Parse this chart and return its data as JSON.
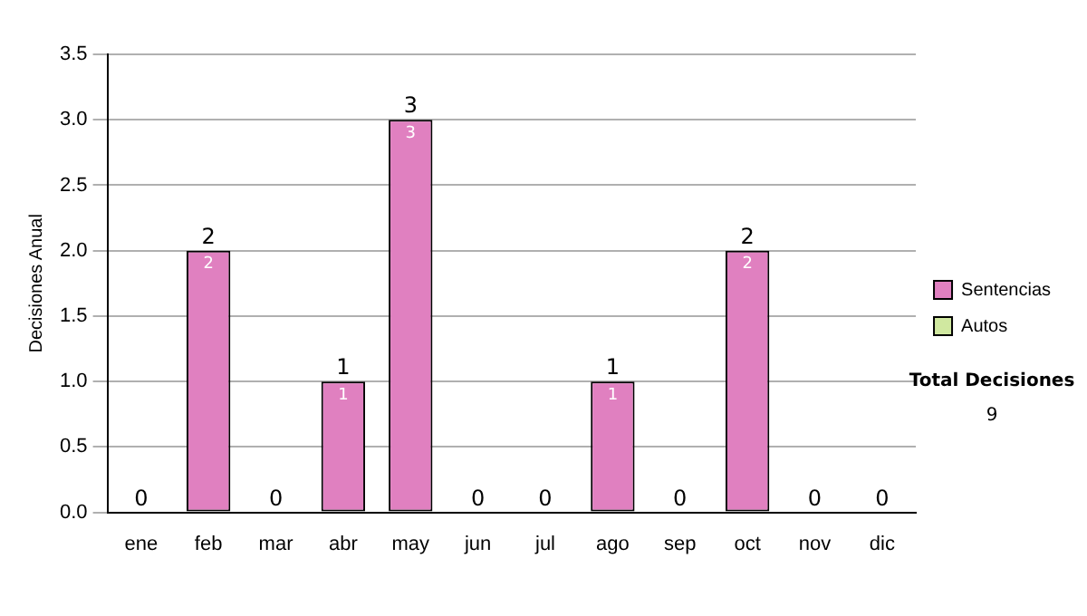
{
  "chart_data": {
    "type": "bar",
    "stacked": true,
    "ylabel": "Decisiones Anual",
    "categories": [
      "ene",
      "feb",
      "mar",
      "abr",
      "may",
      "jun",
      "jul",
      "ago",
      "sep",
      "oct",
      "nov",
      "dic"
    ],
    "series": [
      {
        "name": "Sentencias",
        "color": "#e080c0",
        "values": [
          0,
          2,
          0,
          1,
          3,
          0,
          0,
          1,
          0,
          2,
          0,
          0
        ],
        "value_labels": [
          null,
          "2",
          null,
          "1",
          "3",
          null,
          null,
          "1",
          null,
          "2",
          null,
          null
        ]
      },
      {
        "name": "Autos",
        "color": "#d0e8a0",
        "values": [
          0,
          0,
          0,
          0,
          0,
          0,
          0,
          0,
          0,
          0,
          0,
          0
        ]
      }
    ],
    "totals": [
      "0",
      "2",
      "0",
      "1",
      "3",
      "0",
      "0",
      "1",
      "0",
      "2",
      "0",
      "0"
    ],
    "ylim": [
      0,
      3.5
    ],
    "yticks": [
      {
        "value": 0,
        "label": "0.0"
      },
      {
        "value": 0.5,
        "label": "0.5"
      },
      {
        "value": 1,
        "label": "1.0"
      },
      {
        "value": 1.5,
        "label": "1.5"
      },
      {
        "value": 2,
        "label": "2.0"
      },
      {
        "value": 2.5,
        "label": "2.5"
      },
      {
        "value": 3,
        "label": "3.0"
      },
      {
        "value": 3.5,
        "label": "3.5"
      }
    ],
    "grid": "y",
    "legend": "right",
    "annotations": [
      "Total Decisiones",
      "9"
    ]
  }
}
